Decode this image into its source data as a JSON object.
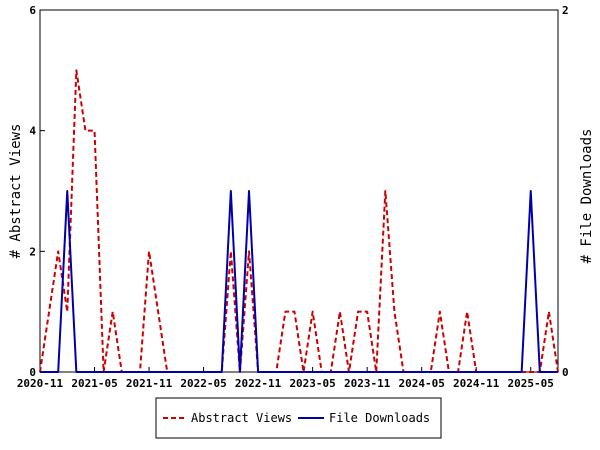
{
  "chart_data": {
    "type": "line",
    "xlabel": "",
    "y_left_label": "# Abstract Views",
    "y_right_label": "# File Downloads",
    "y_left_range": [
      0,
      6
    ],
    "y_right_range": [
      0,
      2
    ],
    "y_left_ticks": [
      "0",
      "2",
      "4",
      "6"
    ],
    "y_right_ticks": [
      "0",
      "2"
    ],
    "x_range": [
      "2020-11",
      "2025-08"
    ],
    "x_ticks": [
      "2020-11",
      "2021-05",
      "2021-11",
      "2022-05",
      "2022-11",
      "2023-05",
      "2023-11",
      "2024-05",
      "2024-11",
      "2025-05"
    ],
    "grid": false,
    "legend_position": "bottom-center",
    "categories": [
      "2020-11",
      "2020-12",
      "2021-01",
      "2021-02",
      "2021-03",
      "2021-04",
      "2021-05",
      "2021-06",
      "2021-07",
      "2021-08",
      "2021-09",
      "2021-10",
      "2021-11",
      "2021-12",
      "2022-01",
      "2022-02",
      "2022-03",
      "2022-04",
      "2022-05",
      "2022-06",
      "2022-07",
      "2022-08",
      "2022-09",
      "2022-10",
      "2022-11",
      "2022-12",
      "2023-01",
      "2023-02",
      "2023-03",
      "2023-04",
      "2023-05",
      "2023-06",
      "2023-07",
      "2023-08",
      "2023-09",
      "2023-10",
      "2023-11",
      "2023-12",
      "2024-01",
      "2024-02",
      "2024-03",
      "2024-04",
      "2024-05",
      "2024-06",
      "2024-07",
      "2024-08",
      "2024-09",
      "2024-10",
      "2024-11",
      "2024-12",
      "2025-01",
      "2025-02",
      "2025-03",
      "2025-04",
      "2025-05",
      "2025-06",
      "2025-07",
      "2025-08"
    ],
    "series": [
      {
        "name": "Abstract Views",
        "axis": "left",
        "color": "#cc0000",
        "dash": "dashed",
        "values": [
          0,
          1,
          2,
          1,
          5,
          4,
          4,
          0,
          1,
          0,
          0,
          0,
          2,
          1,
          0,
          0,
          0,
          0,
          0,
          0,
          0,
          2,
          0,
          2,
          0,
          0,
          0,
          1,
          1,
          0,
          1,
          0,
          0,
          1,
          0,
          1,
          1,
          0,
          3,
          1,
          0,
          0,
          0,
          0,
          1,
          0,
          0,
          1,
          0,
          0,
          0,
          0,
          0,
          0,
          0,
          0,
          1,
          0
        ]
      },
      {
        "name": "File Downloads",
        "axis": "right",
        "color": "#0000aa",
        "dash": "solid",
        "values": [
          0,
          0,
          0,
          1,
          0,
          0,
          0,
          0,
          0,
          0,
          0,
          0,
          0,
          0,
          0,
          0,
          0,
          0,
          0,
          0,
          0,
          1,
          0,
          1,
          0,
          0,
          0,
          0,
          0,
          0,
          0,
          0,
          0,
          0,
          0,
          0,
          0,
          0,
          0,
          0,
          0,
          0,
          0,
          0,
          0,
          0,
          0,
          0,
          0,
          0,
          0,
          0,
          0,
          0,
          1,
          0,
          0,
          0
        ]
      }
    ]
  }
}
